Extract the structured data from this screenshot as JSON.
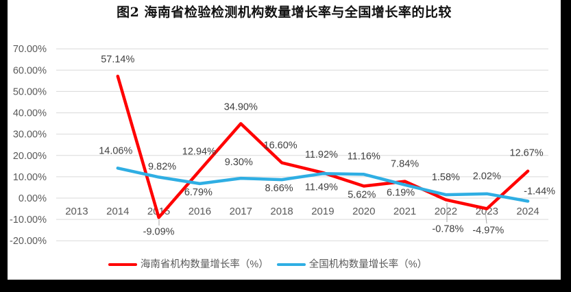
{
  "title": "图2 海南省检验检测机构数量增长率与全国增长率的比较",
  "colors": {
    "hainan_line": "#FF0000",
    "national_line": "#2FAEE3",
    "gridline": "#D9D9D9",
    "axis_text": "#595959",
    "label_text": "#404040",
    "leader_line": "#A6A6A6",
    "frame_border": "#000000",
    "background": "#FFFFFF"
  },
  "chart_data": {
    "type": "line",
    "title": "图2 海南省检验检测机构数量增长率与全国增长率的比较",
    "categories": [
      "2013",
      "2014",
      "2015",
      "2016",
      "2017",
      "2018",
      "2019",
      "2020",
      "2021",
      "2022",
      "2023",
      "2024"
    ],
    "series": [
      {
        "name": "海南省机构数量增长率（%）",
        "color": "#FF0000",
        "values": [
          null,
          57.14,
          -9.09,
          12.94,
          34.9,
          16.6,
          11.92,
          5.62,
          7.84,
          -0.78,
          -4.97,
          12.67
        ],
        "labels": [
          null,
          "57.14%",
          "-9.09%",
          "12.94%",
          "34.90%",
          "16.60%",
          "11.92%",
          "5.62%",
          "7.84%",
          "-0.78%",
          "-4.97%",
          "12.67%"
        ]
      },
      {
        "name": "全国机构数量增长率（%）",
        "color": "#2FAEE3",
        "values": [
          null,
          14.06,
          9.82,
          6.79,
          9.3,
          8.66,
          11.49,
          11.16,
          6.19,
          1.58,
          2.02,
          -1.44
        ],
        "labels": [
          null,
          "14.06%",
          "9.82%",
          "6.79%",
          "9.30%",
          "8.66%",
          "11.49%",
          "11.16%",
          "6.19%",
          "1.58%",
          "2.02%",
          "-1.44%"
        ]
      }
    ],
    "y_axis": {
      "min": -20,
      "max": 70,
      "step": 10,
      "tick_values": [
        70,
        60,
        50,
        40,
        30,
        20,
        10,
        0,
        -10,
        -20
      ],
      "tick_labels": [
        "70.00%",
        "60.00%",
        "50.00%",
        "40.00%",
        "30.00%",
        "20.00%",
        "10.00%",
        "0.00%",
        "-10.00%",
        "-20.00%"
      ]
    },
    "grid": true,
    "legend_position": "bottom"
  }
}
